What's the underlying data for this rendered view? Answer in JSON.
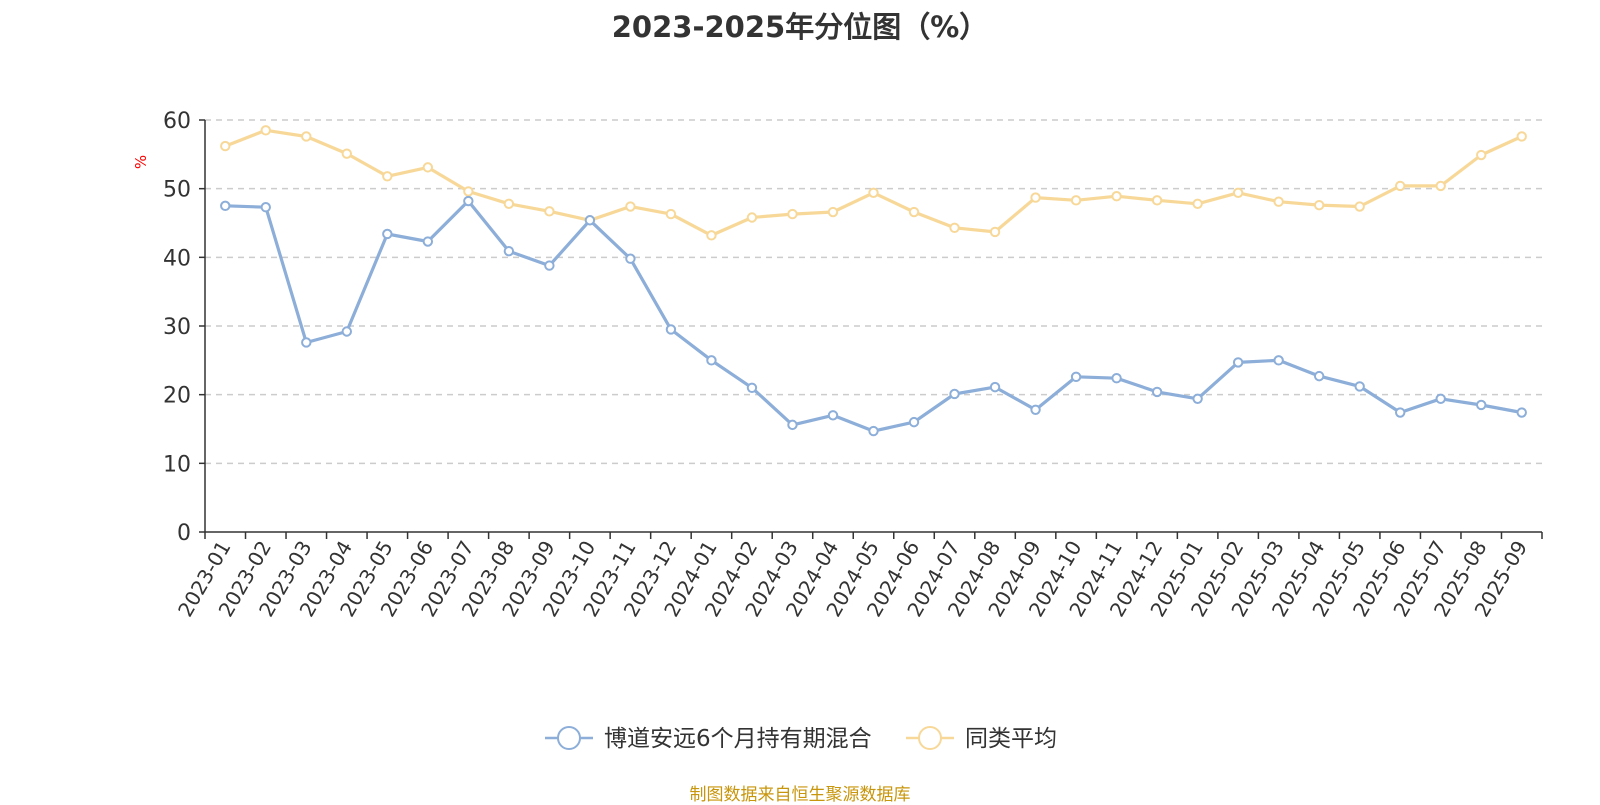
{
  "chart_data": {
    "type": "line",
    "title": "2023-2025年分位图（%）",
    "ylabel": "%",
    "ylim": [
      0,
      60
    ],
    "yticks": [
      0,
      10,
      20,
      30,
      40,
      50,
      60
    ],
    "grid": true,
    "legend_position": "bottom",
    "categories": [
      "2023-01",
      "2023-02",
      "2023-03",
      "2023-04",
      "2023-05",
      "2023-06",
      "2023-07",
      "2023-08",
      "2023-09",
      "2023-10",
      "2023-11",
      "2023-12",
      "2024-01",
      "2024-02",
      "2024-03",
      "2024-04",
      "2024-05",
      "2024-06",
      "2024-07",
      "2024-08",
      "2024-09",
      "2024-10",
      "2024-11",
      "2024-12",
      "2025-01",
      "2025-02",
      "2025-03",
      "2025-04",
      "2025-05",
      "2025-06",
      "2025-07",
      "2025-08",
      "2025-09"
    ],
    "series": [
      {
        "name": "博道安远6个月持有期混合",
        "color": "#8caed8",
        "values": [
          47.5,
          47.3,
          27.6,
          29.2,
          43.4,
          42.3,
          48.2,
          40.9,
          38.8,
          45.4,
          39.8,
          29.5,
          25.0,
          21.0,
          15.6,
          17.0,
          14.7,
          16.0,
          20.1,
          21.1,
          17.8,
          22.6,
          22.4,
          20.4,
          19.4,
          24.7,
          25.0,
          22.7,
          21.2,
          17.4,
          19.4,
          18.5,
          17.4
        ]
      },
      {
        "name": "同类平均",
        "color": "#f8d898",
        "values": [
          56.2,
          58.5,
          57.6,
          55.1,
          51.8,
          53.1,
          49.6,
          47.8,
          46.7,
          45.4,
          47.4,
          46.3,
          43.2,
          45.8,
          46.3,
          46.6,
          49.4,
          46.6,
          44.3,
          43.7,
          48.7,
          48.3,
          48.9,
          48.3,
          47.8,
          49.4,
          48.1,
          47.6,
          47.4,
          50.4,
          50.4,
          54.9,
          57.6
        ]
      }
    ],
    "axis_color": "#333333",
    "grid_color": "#cccccc",
    "tick_label_color": "#333333",
    "ylabel_color": "#ff0000"
  },
  "source_note": "制图数据来自恒生聚源数据库",
  "source_color": "#c8960c"
}
